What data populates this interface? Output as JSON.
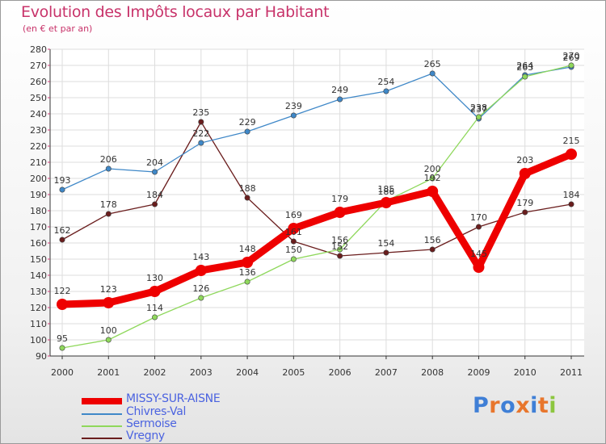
{
  "title": "Evolution des Impôts locaux par Habitant",
  "subtitle": "(en € et par an)",
  "logo_text": "Proxiti",
  "logo_letters": [
    {
      "ch": "P",
      "color": "#3f7fd6"
    },
    {
      "ch": "r",
      "color": "#e8762c"
    },
    {
      "ch": "o",
      "color": "#3f7fd6"
    },
    {
      "ch": "x",
      "color": "#e8762c"
    },
    {
      "ch": "i",
      "color": "#3f7fd6"
    },
    {
      "ch": "t",
      "color": "#e8762c"
    },
    {
      "ch": "i",
      "color": "#8cc63f"
    }
  ],
  "chart_data": {
    "type": "line",
    "title": "Evolution des Impôts locaux par Habitant",
    "subtitle": "(en € et par an)",
    "xlabel": "",
    "ylabel": "",
    "categories": [
      "2000",
      "2001",
      "2002",
      "2003",
      "2004",
      "2005",
      "2006",
      "2007",
      "2008",
      "2009",
      "2010",
      "2011"
    ],
    "ylim": [
      90,
      280
    ],
    "yticks": [
      90,
      100,
      110,
      120,
      130,
      140,
      150,
      160,
      170,
      180,
      190,
      200,
      210,
      220,
      230,
      240,
      250,
      260,
      270,
      280
    ],
    "grid": true,
    "legend_position": "bottom-left",
    "series": [
      {
        "name": "MISSY-SUR-AISNE",
        "color": "#ee0000",
        "values": [
          122,
          123,
          130,
          143,
          148,
          169,
          179,
          185,
          192,
          145,
          203,
          215
        ]
      },
      {
        "name": "Chivres-Val",
        "color": "#3f88c8",
        "values": [
          193,
          206,
          204,
          222,
          229,
          239,
          249,
          254,
          265,
          237,
          264,
          269
        ]
      },
      {
        "name": "Sermoise",
        "color": "#8fd85c",
        "values": [
          95,
          100,
          114,
          126,
          136,
          150,
          156,
          186,
          200,
          238,
          263,
          270
        ]
      },
      {
        "name": "Vregny",
        "color": "#6a1d1d",
        "values": [
          162,
          178,
          184,
          235,
          188,
          161,
          152,
          154,
          156,
          170,
          179,
          184
        ]
      }
    ]
  }
}
